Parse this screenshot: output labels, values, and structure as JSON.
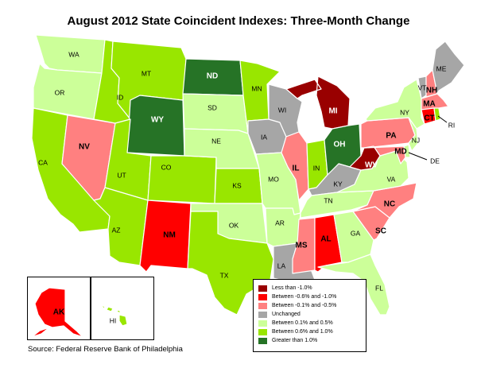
{
  "title": "August 2012 State Coincident Indexes: Three-Month Change",
  "source": "Source: Federal Reserve Bank of Philadelphia",
  "colors": {
    "lt_neg1": "#990000",
    "neg06_neg1": "#ff0000",
    "neg01_neg05": "#ff8080",
    "unchanged": "#a6a6a6",
    "p01_05": "#ccff99",
    "p06_1": "#99e600",
    "gt1": "#267326"
  },
  "legend": [
    {
      "key": "lt_neg1",
      "label": "Less than -1.0%"
    },
    {
      "key": "neg06_neg1",
      "label": "Between -0.6% and -1.0%"
    },
    {
      "key": "neg01_neg05",
      "label": "Between -0.1% and -0.5%"
    },
    {
      "key": "unchanged",
      "label": "Unchanged"
    },
    {
      "key": "p01_05",
      "label": "Between 0.1% and 0.5%"
    },
    {
      "key": "p06_1",
      "label": "Between 0.6% and 1.0%"
    },
    {
      "key": "gt1",
      "label": "Greater than 1.0%"
    }
  ],
  "states": {
    "WA": {
      "label": "WA",
      "cat": "p01_05"
    },
    "OR": {
      "label": "OR",
      "cat": "p01_05"
    },
    "CA": {
      "label": "CA",
      "cat": "p06_1"
    },
    "NV": {
      "label": "NV",
      "cat": "neg01_neg05"
    },
    "ID": {
      "label": "ID",
      "cat": "p06_1"
    },
    "MT": {
      "label": "MT",
      "cat": "p06_1"
    },
    "WY": {
      "label": "WY",
      "cat": "gt1"
    },
    "UT": {
      "label": "UT",
      "cat": "p06_1"
    },
    "CO": {
      "label": "CO",
      "cat": "p06_1"
    },
    "AZ": {
      "label": "AZ",
      "cat": "p06_1"
    },
    "NM": {
      "label": "NM",
      "cat": "neg06_neg1"
    },
    "ND": {
      "label": "ND",
      "cat": "gt1"
    },
    "SD": {
      "label": "SD",
      "cat": "p01_05"
    },
    "NE": {
      "label": "NE",
      "cat": "p01_05"
    },
    "KS": {
      "label": "KS",
      "cat": "p06_1"
    },
    "OK": {
      "label": "OK",
      "cat": "p01_05"
    },
    "TX": {
      "label": "TX",
      "cat": "p06_1"
    },
    "MN": {
      "label": "MN",
      "cat": "p06_1"
    },
    "IA": {
      "label": "IA",
      "cat": "unchanged"
    },
    "MO": {
      "label": "MO",
      "cat": "p01_05"
    },
    "AR": {
      "label": "AR",
      "cat": "p01_05"
    },
    "LA": {
      "label": "LA",
      "cat": "unchanged"
    },
    "WI": {
      "label": "WI",
      "cat": "unchanged"
    },
    "IL": {
      "label": "IL",
      "cat": "neg01_neg05"
    },
    "MI": {
      "label": "MI",
      "cat": "lt_neg1"
    },
    "IN": {
      "label": "IN",
      "cat": "p06_1"
    },
    "OH": {
      "label": "OH",
      "cat": "gt1"
    },
    "KY": {
      "label": "KY",
      "cat": "unchanged"
    },
    "TN": {
      "label": "TN",
      "cat": "p01_05"
    },
    "MS": {
      "label": "MS",
      "cat": "neg01_neg05"
    },
    "AL": {
      "label": "AL",
      "cat": "neg06_neg1"
    },
    "GA": {
      "label": "GA",
      "cat": "p01_05"
    },
    "FL": {
      "label": "FL",
      "cat": "p01_05"
    },
    "SC": {
      "label": "SC",
      "cat": "neg01_neg05"
    },
    "NC": {
      "label": "NC",
      "cat": "neg01_neg05"
    },
    "VA": {
      "label": "VA",
      "cat": "p01_05"
    },
    "WV": {
      "label": "WV",
      "cat": "lt_neg1"
    },
    "PA": {
      "label": "PA",
      "cat": "neg01_neg05"
    },
    "NY": {
      "label": "NY",
      "cat": "p01_05"
    },
    "VT": {
      "label": "VT",
      "cat": "unchanged"
    },
    "NH": {
      "label": "NH",
      "cat": "neg01_neg05"
    },
    "ME": {
      "label": "ME",
      "cat": "unchanged"
    },
    "MA": {
      "label": "MA",
      "cat": "neg01_neg05"
    },
    "CT": {
      "label": "CT",
      "cat": "neg06_neg1"
    },
    "RI": {
      "label": "RI",
      "cat": "p06_1"
    },
    "NJ": {
      "label": "NJ",
      "cat": "p01_05"
    },
    "DE": {
      "label": "DE",
      "cat": "p01_05"
    },
    "MD": {
      "label": "MD",
      "cat": "neg01_neg05"
    },
    "AK": {
      "label": "AK",
      "cat": "neg06_neg1"
    },
    "HI": {
      "label": "HI",
      "cat": "p06_1"
    }
  }
}
